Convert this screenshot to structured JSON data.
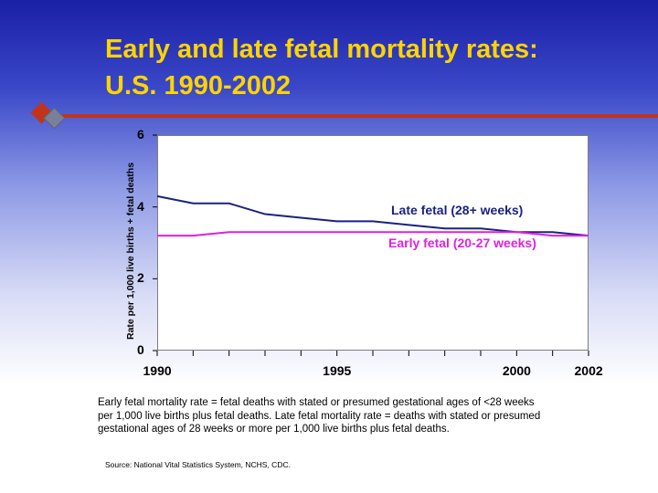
{
  "slide": {
    "title_line1": "Early and late fetal mortality rates:",
    "title_line2": "U.S.  1990-2002",
    "footnote": "Early fetal mortality rate = fetal deaths with stated or presumed gestational ages of <28 weeks per 1,000 live births plus fetal deaths.  Late fetal mortality rate = deaths with stated or presumed gestational ages of 28 weeks or more per 1,000 live births plus fetal deaths.",
    "source": "Source: National Vital Statistics System, NCHS, CDC.",
    "colors": {
      "title": "#ffd400",
      "accent_rule": "#c0341b"
    }
  },
  "chart_data": {
    "type": "line",
    "title": "",
    "ylabel": "Rate per 1,000 live births + fetal deaths",
    "xlabel": "",
    "ylim": [
      0,
      6
    ],
    "xlim": [
      1990,
      2002
    ],
    "yticks": [
      "0",
      "2",
      "4",
      "6"
    ],
    "xtick_labels": [
      "1990",
      "1995",
      "2000",
      "2002"
    ],
    "xtick_values": [
      1990,
      1995,
      2000,
      2002
    ],
    "grid": false,
    "x": [
      1990,
      1991,
      1992,
      1993,
      1994,
      1995,
      1996,
      1997,
      1998,
      1999,
      2000,
      2001,
      2002
    ],
    "series": [
      {
        "name": "Late fetal (28+ weeks)",
        "color": "#1a237e",
        "values": [
          4.3,
          4.1,
          4.1,
          3.8,
          3.7,
          3.6,
          3.6,
          3.5,
          3.4,
          3.4,
          3.3,
          3.3,
          3.2
        ]
      },
      {
        "name": "Early fetal (20-27 weeks)",
        "color": "#e020e0",
        "values": [
          3.2,
          3.2,
          3.3,
          3.3,
          3.3,
          3.3,
          3.3,
          3.3,
          3.3,
          3.3,
          3.3,
          3.2,
          3.2
        ]
      }
    ]
  }
}
